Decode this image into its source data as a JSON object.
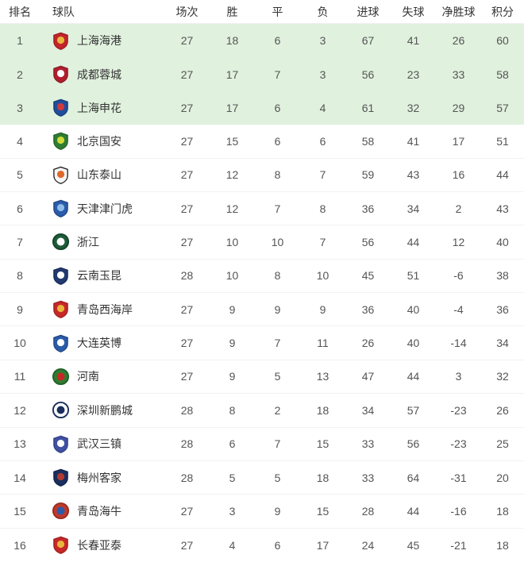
{
  "table": {
    "columns": [
      {
        "key": "rank",
        "label": "排名"
      },
      {
        "key": "team",
        "label": "球队"
      },
      {
        "key": "played",
        "label": "场次"
      },
      {
        "key": "win",
        "label": "胜"
      },
      {
        "key": "draw",
        "label": "平"
      },
      {
        "key": "loss",
        "label": "负"
      },
      {
        "key": "goals_for",
        "label": "进球"
      },
      {
        "key": "goals_against",
        "label": "失球"
      },
      {
        "key": "goal_diff",
        "label": "净胜球"
      },
      {
        "key": "points",
        "label": "积分"
      }
    ],
    "rows": [
      {
        "rank": 1,
        "name": "上海海港",
        "played": 27,
        "win": 18,
        "draw": 6,
        "loss": 3,
        "gf": 67,
        "ga": 41,
        "gd": 26,
        "pts": 60,
        "highlight": true,
        "logo": {
          "shape": "shield",
          "bg": "#c2242b",
          "fg": "#e9b63d",
          "border": "#9e1c22"
        }
      },
      {
        "rank": 2,
        "name": "成都蓉城",
        "played": 27,
        "win": 17,
        "draw": 7,
        "loss": 3,
        "gf": 56,
        "ga": 23,
        "gd": 33,
        "pts": 58,
        "highlight": true,
        "logo": {
          "shape": "shield",
          "bg": "#b01f2e",
          "fg": "#ffffff",
          "border": "#8e1824"
        }
      },
      {
        "rank": 3,
        "name": "上海申花",
        "played": 27,
        "win": 17,
        "draw": 6,
        "loss": 4,
        "gf": 61,
        "ga": 32,
        "gd": 29,
        "pts": 57,
        "highlight": true,
        "logo": {
          "shape": "shield",
          "bg": "#1f4e9c",
          "fg": "#d03a3a",
          "border": "#173c7a"
        }
      },
      {
        "rank": 4,
        "name": "北京国安",
        "played": 27,
        "win": 15,
        "draw": 6,
        "loss": 6,
        "gf": 58,
        "ga": 41,
        "gd": 17,
        "pts": 51,
        "highlight": false,
        "logo": {
          "shape": "shield",
          "bg": "#2e7d32",
          "fg": "#cddc39",
          "border": "#226127"
        }
      },
      {
        "rank": 5,
        "name": "山东泰山",
        "played": 27,
        "win": 12,
        "draw": 8,
        "loss": 7,
        "gf": 59,
        "ga": 43,
        "gd": 16,
        "pts": 44,
        "highlight": false,
        "logo": {
          "shape": "shield",
          "bg": "#f5f5f5",
          "fg": "#e0672a",
          "border": "#222222"
        }
      },
      {
        "rank": 6,
        "name": "天津津门虎",
        "played": 27,
        "win": 12,
        "draw": 7,
        "loss": 8,
        "gf": 36,
        "ga": 34,
        "gd": 2,
        "pts": 43,
        "highlight": false,
        "logo": {
          "shape": "shield",
          "bg": "#2a5caa",
          "fg": "#8fbbe8",
          "border": "#1f4683"
        }
      },
      {
        "rank": 7,
        "name": "浙江",
        "played": 27,
        "win": 10,
        "draw": 10,
        "loss": 7,
        "gf": 56,
        "ga": 44,
        "gd": 12,
        "pts": 40,
        "highlight": false,
        "logo": {
          "shape": "circle",
          "bg": "#1d5c38",
          "fg": "#ffffff",
          "border": "#14452a"
        }
      },
      {
        "rank": 8,
        "name": "云南玉昆",
        "played": 28,
        "win": 10,
        "draw": 8,
        "loss": 10,
        "gf": 45,
        "ga": 51,
        "gd": -6,
        "pts": 38,
        "highlight": false,
        "logo": {
          "shape": "shield",
          "bg": "#223a70",
          "fg": "#ffffff",
          "border": "#182c57"
        }
      },
      {
        "rank": 9,
        "name": "青岛西海岸",
        "played": 27,
        "win": 9,
        "draw": 9,
        "loss": 9,
        "gf": 36,
        "ga": 40,
        "gd": -4,
        "pts": 36,
        "highlight": false,
        "logo": {
          "shape": "shield",
          "bg": "#c62828",
          "fg": "#e9b63d",
          "border": "#9e1f1f"
        }
      },
      {
        "rank": 10,
        "name": "大连英博",
        "played": 27,
        "win": 9,
        "draw": 7,
        "loss": 11,
        "gf": 26,
        "ga": 40,
        "gd": -14,
        "pts": 34,
        "highlight": false,
        "logo": {
          "shape": "shield",
          "bg": "#2a5caa",
          "fg": "#ffffff",
          "border": "#1f4683"
        }
      },
      {
        "rank": 11,
        "name": "河南",
        "played": 27,
        "win": 9,
        "draw": 5,
        "loss": 13,
        "gf": 47,
        "ga": 44,
        "gd": 3,
        "pts": 32,
        "highlight": false,
        "logo": {
          "shape": "circle",
          "bg": "#2e7d32",
          "fg": "#c62828",
          "border": "#226127"
        }
      },
      {
        "rank": 12,
        "name": "深圳新鹏城",
        "played": 28,
        "win": 8,
        "draw": 2,
        "loss": 18,
        "gf": 34,
        "ga": 57,
        "gd": -23,
        "pts": 26,
        "highlight": false,
        "logo": {
          "shape": "circle",
          "bg": "#ffffff",
          "fg": "#1a2f5e",
          "border": "#1a2f5e"
        }
      },
      {
        "rank": 13,
        "name": "武汉三镇",
        "played": 28,
        "win": 6,
        "draw": 7,
        "loss": 15,
        "gf": 33,
        "ga": 56,
        "gd": -23,
        "pts": 25,
        "highlight": false,
        "logo": {
          "shape": "shield",
          "bg": "#3f51a3",
          "fg": "#ffffff",
          "border": "#303f82"
        }
      },
      {
        "rank": 14,
        "name": "梅州客家",
        "played": 28,
        "win": 5,
        "draw": 5,
        "loss": 18,
        "gf": 33,
        "ga": 64,
        "gd": -31,
        "pts": 20,
        "highlight": false,
        "logo": {
          "shape": "shield",
          "bg": "#1a2f5e",
          "fg": "#b23a2e",
          "border": "#12224a"
        }
      },
      {
        "rank": 15,
        "name": "青岛海牛",
        "played": 27,
        "win": 3,
        "draw": 9,
        "loss": 15,
        "gf": 28,
        "ga": 44,
        "gd": -16,
        "pts": 18,
        "highlight": false,
        "logo": {
          "shape": "circle",
          "bg": "#c0392b",
          "fg": "#2a5caa",
          "border": "#992e22"
        }
      },
      {
        "rank": 16,
        "name": "长春亚泰",
        "played": 27,
        "win": 4,
        "draw": 6,
        "loss": 17,
        "gf": 24,
        "ga": 45,
        "gd": -21,
        "pts": 18,
        "highlight": false,
        "logo": {
          "shape": "shield",
          "bg": "#c62828",
          "fg": "#e9b63d",
          "border": "#9e1f1f"
        }
      }
    ]
  },
  "colors": {
    "highlight_row_bg": "#e0f1de",
    "row_divider": "#f2f2f2",
    "header_text": "#333333",
    "cell_text": "#555555",
    "team_text": "#333333",
    "page_bg": "#ffffff"
  }
}
